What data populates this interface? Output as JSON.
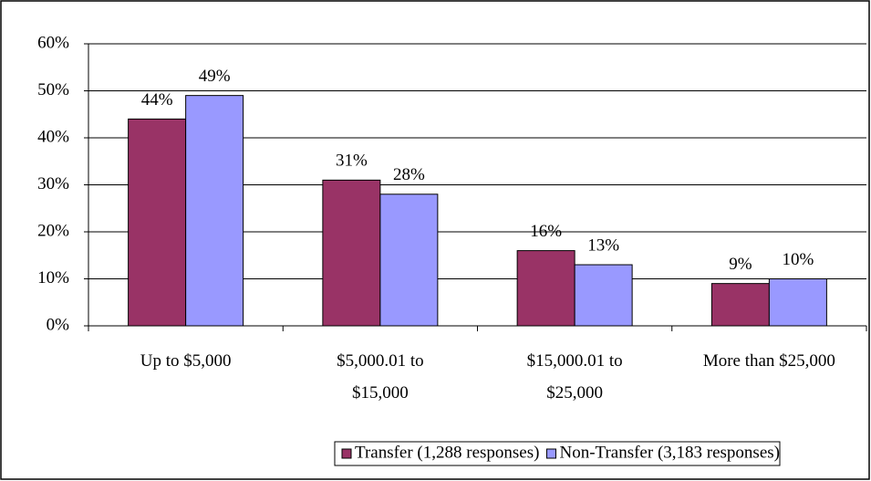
{
  "chart_data": {
    "type": "bar",
    "categories": [
      "Up to $5,000",
      "$5,000.01 to $15,000",
      "$15,000.01 to $25,000",
      "More than $25,000"
    ],
    "series": [
      {
        "name": "Transfer (1,288 responses)",
        "color": "#993366",
        "values": [
          44,
          31,
          16,
          9
        ],
        "value_labels": [
          "44%",
          "31%",
          "16%",
          "9%"
        ]
      },
      {
        "name": "Non-Transfer (3,183 responses)",
        "color": "#9999ff",
        "values": [
          49,
          28,
          13,
          10
        ],
        "value_labels": [
          "49%",
          "28%",
          "13%",
          "10%"
        ]
      }
    ],
    "ylim": [
      0,
      60
    ],
    "yticks": [
      {
        "value": 0,
        "label": "0%"
      },
      {
        "value": 10,
        "label": "10%"
      },
      {
        "value": 20,
        "label": "20%"
      },
      {
        "value": 30,
        "label": "30%"
      },
      {
        "value": 40,
        "label": "40%"
      },
      {
        "value": 50,
        "label": "50%"
      },
      {
        "value": 60,
        "label": "60%"
      }
    ],
    "grid": true,
    "legend": "bottom"
  }
}
